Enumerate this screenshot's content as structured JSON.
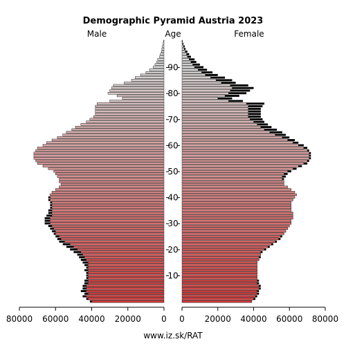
{
  "chart_data": {
    "type": "bar",
    "subtype": "population-pyramid",
    "title": "Demographic Pyramid Austria 2023",
    "left_label": "Male",
    "center_label": "Age",
    "right_label": "Female",
    "footer": "www.iz.sk/RAT",
    "age_ticks": [
      "10",
      "20",
      "30",
      "40",
      "50",
      "60",
      "70",
      "80",
      "90"
    ],
    "x_ticks_left": [
      "80000",
      "60000",
      "40000",
      "20000",
      "0"
    ],
    "x_ticks_right": [
      "0",
      "20000",
      "40000",
      "60000",
      "80000"
    ],
    "xlim": [
      0,
      80000
    ],
    "age_range": [
      0,
      100
    ],
    "colors": {
      "young": "#d63a3a",
      "old": "#d8d8d8",
      "outline": "#000000",
      "highlight": "#000000"
    },
    "ages": [
      0,
      1,
      2,
      3,
      4,
      5,
      6,
      7,
      8,
      9,
      10,
      11,
      12,
      13,
      14,
      15,
      16,
      17,
      18,
      19,
      20,
      21,
      22,
      23,
      24,
      25,
      26,
      27,
      28,
      29,
      30,
      31,
      32,
      33,
      34,
      35,
      36,
      37,
      38,
      39,
      40,
      41,
      42,
      43,
      44,
      45,
      46,
      47,
      48,
      49,
      50,
      51,
      52,
      53,
      54,
      55,
      56,
      57,
      58,
      59,
      60,
      61,
      62,
      63,
      64,
      65,
      66,
      67,
      68,
      69,
      70,
      71,
      72,
      73,
      74,
      75,
      76,
      77,
      78,
      79,
      80,
      81,
      82,
      83,
      84,
      85,
      86,
      87,
      88,
      89,
      90,
      91,
      92,
      93,
      94,
      95,
      96,
      97,
      98,
      99,
      100
    ],
    "series": [
      {
        "name": "Male",
        "values": [
          41000,
          43000,
          45000,
          44000,
          46000,
          45000,
          45000,
          44000,
          44000,
          43000,
          43000,
          43000,
          44000,
          43000,
          44000,
          45000,
          46000,
          47000,
          48000,
          50000,
          52000,
          54000,
          56000,
          58000,
          59000,
          60000,
          61000,
          62000,
          63000,
          64000,
          66000,
          66000,
          66000,
          65000,
          64000,
          64000,
          63000,
          63000,
          63000,
          64000,
          64000,
          63000,
          62000,
          60000,
          58000,
          57000,
          58000,
          58000,
          59000,
          60000,
          61000,
          64000,
          67000,
          70000,
          71000,
          72000,
          72000,
          72000,
          71000,
          70000,
          67000,
          65000,
          62000,
          59000,
          56000,
          54000,
          51000,
          49000,
          46000,
          43000,
          41000,
          39000,
          38000,
          38000,
          38000,
          38000,
          37000,
          30000,
          23000,
          26000,
          31000,
          30000,
          29000,
          28000,
          22000,
          18000,
          16000,
          13000,
          10000,
          8000,
          6000,
          5000,
          4000,
          3500,
          2500,
          2000,
          1500,
          1200,
          900,
          500,
          300
        ],
        "highlight_values": [
          40000,
          42000,
          43000,
          42000,
          43000,
          43000,
          43000,
          42000,
          42000,
          42000,
          42000,
          42000,
          42000,
          42000,
          42000,
          42000,
          43000,
          44000,
          45000,
          46000,
          48000,
          50000,
          52000,
          55000,
          57000,
          58000,
          60000,
          60000,
          61000,
          62000,
          63000,
          63000,
          63000,
          62000,
          62000,
          62000,
          62000,
          62000,
          62000,
          63000,
          63000,
          63000,
          62000,
          60000,
          58000,
          57000,
          58000,
          58000,
          59000,
          60000,
          61000,
          64000,
          67000,
          70000,
          71000,
          72000,
          72000,
          72000,
          71000,
          70000,
          67000,
          65000,
          62000,
          59000,
          56000,
          54000,
          51000,
          49000,
          46000,
          43000,
          41000,
          39000,
          38000,
          38000,
          38000,
          38000,
          37000,
          30000,
          23000,
          26000,
          31000,
          30000,
          29000,
          28000,
          22000,
          18000,
          16000,
          13000,
          10000,
          8000,
          6000,
          5000,
          4000,
          3500,
          2500,
          2000,
          1500,
          1200,
          900,
          500,
          300
        ]
      },
      {
        "name": "Female",
        "values": [
          39000,
          41000,
          42000,
          43000,
          43000,
          44000,
          44000,
          43000,
          43000,
          42000,
          42000,
          42000,
          42000,
          42000,
          42000,
          42000,
          43000,
          44000,
          44000,
          45000,
          47000,
          49000,
          51000,
          53000,
          55000,
          56000,
          57000,
          58000,
          59000,
          60000,
          61000,
          61000,
          62000,
          62000,
          62000,
          61000,
          61000,
          61000,
          61000,
          62000,
          63000,
          64000,
          63000,
          61000,
          59000,
          57000,
          57000,
          57000,
          58000,
          59000,
          61000,
          64000,
          67000,
          70000,
          71000,
          72000,
          72000,
          72000,
          71000,
          70000,
          68000,
          65000,
          63000,
          60000,
          58000,
          56000,
          53000,
          50000,
          48000,
          46000,
          45000,
          44000,
          44000,
          44000,
          44000,
          45000,
          46000,
          34000,
          28000,
          32000,
          36000,
          38000,
          40000,
          37000,
          30000,
          28000,
          24000,
          20000,
          17000,
          14000,
          12000,
          10000,
          8000,
          7000,
          5000,
          4000,
          3000,
          2000,
          1500,
          800,
          400
        ],
        "highlight_values": [
          39000,
          40000,
          41000,
          42000,
          42000,
          43000,
          43000,
          42000,
          42000,
          42000,
          42000,
          42000,
          42000,
          42000,
          42000,
          42000,
          43000,
          43000,
          44000,
          44000,
          46000,
          48000,
          50000,
          52000,
          54000,
          55000,
          57000,
          58000,
          59000,
          60000,
          61000,
          61000,
          62000,
          62000,
          62000,
          61000,
          61000,
          61000,
          61000,
          62000,
          63000,
          64000,
          63000,
          61000,
          59000,
          57000,
          57000,
          56000,
          56000,
          57000,
          59000,
          62000,
          65000,
          68000,
          70000,
          71000,
          71000,
          71000,
          70000,
          68000,
          65000,
          62000,
          59000,
          56000,
          52000,
          49000,
          46000,
          44000,
          42000,
          40000,
          38000,
          37000,
          37000,
          37000,
          37000,
          37000,
          36000,
          26000,
          20000,
          24000,
          26000,
          27000,
          28000,
          27000,
          22000,
          19000,
          16000,
          13000,
          11000,
          9000,
          7000,
          6000,
          5000,
          4000,
          3000,
          2500,
          1800,
          1200,
          800,
          400,
          200
        ]
      }
    ]
  }
}
